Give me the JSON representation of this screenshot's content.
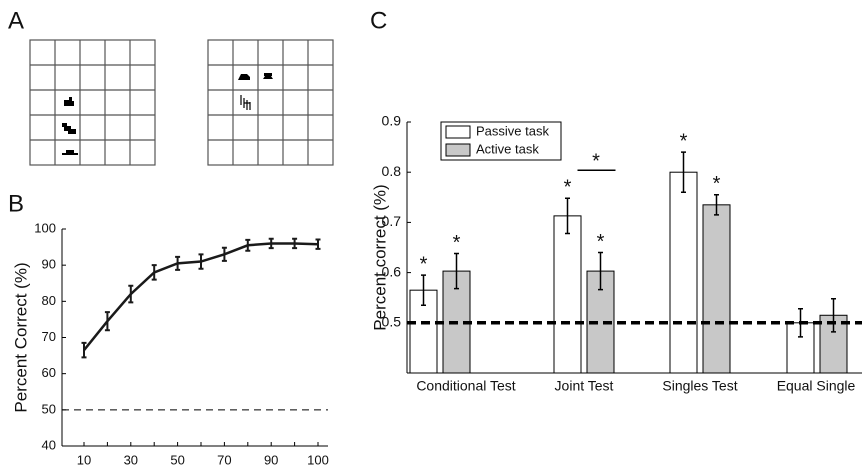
{
  "panel_labels": [
    "A",
    "B",
    "C"
  ],
  "chart_data": [
    {
      "type": "line",
      "y_label": "Percent Correct (%)",
      "categories": [
        "10",
        null,
        "30",
        null,
        "50",
        null,
        "70",
        null,
        "90",
        null,
        "100"
      ],
      "series": [
        {
          "color": "#1a1a1a",
          "values": [
            66.5,
            74.5,
            82,
            88,
            90.5,
            91,
            93,
            95.5,
            96,
            96,
            95.8
          ],
          "errors": [
            2,
            2.5,
            2.3,
            2,
            1.8,
            2,
            1.8,
            1.5,
            1.3,
            1.3,
            1.3
          ]
        }
      ],
      "ylim": [
        40,
        100
      ],
      "yticks": [
        40,
        50,
        60,
        70,
        80,
        90,
        100
      ],
      "reference_line": 50
    },
    {
      "type": "bar",
      "y_label": "Percent correct (%)",
      "categories": [
        "Conditional Test",
        "Joint Test",
        "Singles Test",
        "Equal Single"
      ],
      "series": [
        {
          "name": "Passive task",
          "color": "#ffffff",
          "values": [
            0.565,
            0.713,
            0.8,
            0.5
          ],
          "errors": [
            0.03,
            0.035,
            0.04,
            0.028
          ],
          "marks": [
            "*",
            "*",
            "*",
            null
          ]
        },
        {
          "name": "Active task",
          "color": "#c8c8c8",
          "values": [
            0.603,
            0.603,
            0.735,
            0.515
          ],
          "errors": [
            0.035,
            0.037,
            0.02,
            0.033
          ],
          "marks": [
            "*",
            "*",
            "*",
            null
          ]
        }
      ],
      "bracket_label": "*",
      "ylim": [
        0.4,
        0.9
      ],
      "yticks": [
        0.5,
        0.6,
        0.7,
        0.8,
        0.9
      ],
      "reference_line": 0.5
    }
  ]
}
